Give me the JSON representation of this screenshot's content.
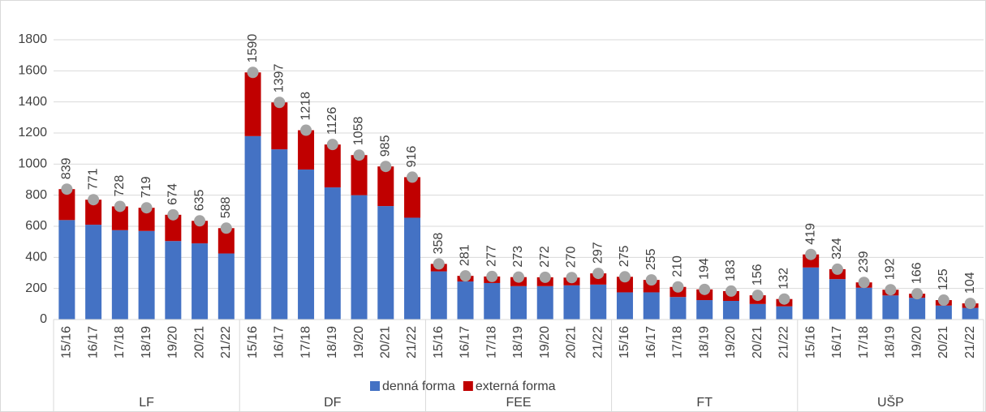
{
  "chart_data": {
    "type": "stacked_bar",
    "categories": [
      "15/16",
      "16/17",
      "17/18",
      "18/19",
      "19/20",
      "20/21",
      "21/22",
      "15/16",
      "16/17",
      "17/18",
      "18/19",
      "19/20",
      "20/21",
      "21/22",
      "15/16",
      "16/17",
      "17/18",
      "18/19",
      "19/20",
      "20/21",
      "21/22",
      "15/16",
      "16/17",
      "17/18",
      "18/19",
      "19/20",
      "20/21",
      "21/22",
      "15/16",
      "16/17",
      "17/18",
      "18/19",
      "19/20",
      "20/21",
      "21/22"
    ],
    "groups": [
      "LF",
      "DF",
      "FEE",
      "FT",
      "UŠP"
    ],
    "series": [
      {
        "name": "denná forma",
        "color": "#4472c4",
        "values": [
          640,
          610,
          575,
          570,
          505,
          490,
          425,
          1180,
          1095,
          965,
          850,
          800,
          730,
          655,
          310,
          245,
          235,
          215,
          215,
          220,
          225,
          175,
          175,
          145,
          125,
          120,
          100,
          85,
          335,
          260,
          205,
          155,
          140,
          90,
          75
        ]
      },
      {
        "name": "externá forma",
        "color": "#c00000",
        "values": [
          199,
          161,
          153,
          149,
          169,
          145,
          163,
          410,
          302,
          253,
          276,
          258,
          255,
          261,
          48,
          36,
          42,
          58,
          57,
          50,
          72,
          100,
          80,
          65,
          69,
          63,
          56,
          47,
          84,
          64,
          34,
          37,
          26,
          35,
          29
        ]
      }
    ],
    "totals": [
      839,
      771,
      728,
      719,
      674,
      635,
      588,
      1590,
      1397,
      1218,
      1126,
      1058,
      985,
      916,
      358,
      281,
      277,
      273,
      272,
      270,
      297,
      275,
      255,
      210,
      194,
      183,
      156,
      132,
      419,
      324,
      239,
      192,
      166,
      125,
      104
    ],
    "totals_color": "#a5a5a5",
    "ylim": [
      0,
      1800
    ],
    "yticks": [
      0,
      200,
      400,
      600,
      800,
      1000,
      1200,
      1400,
      1600,
      1800
    ],
    "grid": true,
    "legend": "bottom"
  }
}
